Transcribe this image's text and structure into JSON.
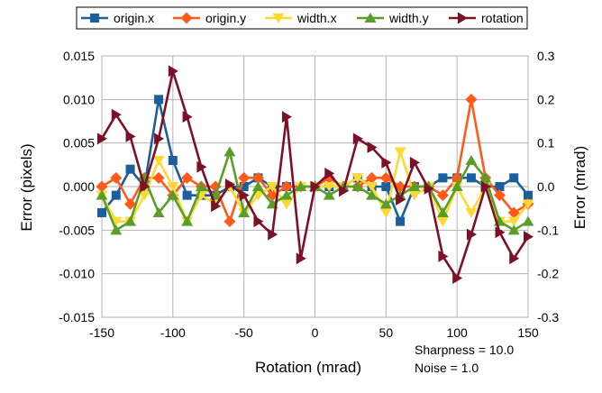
{
  "chart_data": {
    "type": "line",
    "xlabel": "Rotation (mrad)",
    "ylabel": "Error (pixels)",
    "y2label": "Error (mrad)",
    "xlim": [
      -150,
      150
    ],
    "ylim": [
      -0.015,
      0.015
    ],
    "y2lim": [
      -0.3,
      0.3
    ],
    "x_ticks": [
      -150,
      -100,
      -50,
      0,
      50,
      100,
      150
    ],
    "y_ticks": [
      "-0.015",
      "-0.010",
      "-0.005",
      "0.000",
      "0.005",
      "0.010",
      "0.015"
    ],
    "y2_ticks": [
      "-0.3",
      "-0.2",
      "-0.1",
      "0.0",
      "0.1",
      "0.2",
      "0.3"
    ],
    "grid": true,
    "legend_position": "top",
    "annotations": [
      "Sharpness = 10.0",
      "Noise = 1.0"
    ],
    "x": [
      -150,
      -140,
      -130,
      -120,
      -110,
      -100,
      -90,
      -80,
      -70,
      -60,
      -50,
      -40,
      -30,
      -20,
      -10,
      0,
      10,
      20,
      30,
      40,
      50,
      60,
      70,
      80,
      90,
      100,
      110,
      120,
      130,
      140,
      150
    ],
    "series": [
      {
        "name": "origin.x",
        "axis": "left",
        "color": "#1a5f9e",
        "marker": "square",
        "values": [
          -0.003,
          -0.001,
          0.002,
          0.0,
          0.01,
          0.003,
          -0.001,
          -0.001,
          -0.001,
          0.0,
          0.0,
          0.001,
          0.0,
          0.0,
          0.0,
          0.0,
          0.0,
          0.0,
          0.001,
          0.0,
          0.0,
          -0.004,
          0.0,
          0.0,
          0.001,
          0.001,
          0.001,
          0.0,
          0.0,
          0.001,
          -0.001
        ]
      },
      {
        "name": "origin.y",
        "axis": "left",
        "color": "#ff5a1a",
        "marker": "diamond",
        "values": [
          0.0,
          0.001,
          -0.002,
          0.001,
          0.001,
          -0.001,
          0.001,
          0.0,
          0.0,
          -0.004,
          0.001,
          0.001,
          -0.001,
          0.0,
          0.0,
          0.0,
          0.001,
          0.0,
          0.0,
          0.001,
          0.001,
          0.0,
          0.0,
          0.0,
          -0.001,
          0.001,
          0.01,
          0.001,
          -0.001,
          -0.003,
          -0.002
        ]
      },
      {
        "name": "width.x",
        "axis": "left",
        "color": "#ffd932",
        "marker": "triangle-down",
        "values": [
          -0.001,
          -0.004,
          -0.004,
          -0.001,
          0.003,
          0.0,
          -0.004,
          -0.001,
          -0.002,
          0.0,
          -0.003,
          -0.001,
          0.0,
          -0.002,
          0.0,
          0.0,
          0.0,
          0.0,
          0.001,
          0.0,
          -0.003,
          0.004,
          -0.001,
          0.0,
          -0.004,
          0.0,
          -0.003,
          0.0,
          -0.004,
          -0.004,
          -0.002
        ]
      },
      {
        "name": "width.y",
        "axis": "left",
        "color": "#5a9e2a",
        "marker": "triangle-up",
        "values": [
          -0.001,
          -0.005,
          -0.004,
          0.001,
          -0.003,
          -0.001,
          -0.004,
          0.0,
          -0.001,
          0.004,
          -0.003,
          0.0,
          -0.002,
          -0.001,
          0.0,
          0.0,
          -0.001,
          0.0,
          0.0,
          -0.001,
          -0.002,
          -0.001,
          0.0,
          0.0,
          -0.003,
          0.0,
          0.003,
          0.001,
          -0.004,
          -0.005,
          -0.004
        ]
      },
      {
        "name": "rotation",
        "axis": "right",
        "color": "#7d1029",
        "marker": "triangle-right",
        "values": [
          0.11,
          0.165,
          0.115,
          0.0,
          0.11,
          0.265,
          0.16,
          0.045,
          -0.045,
          0.005,
          -0.02,
          -0.08,
          -0.11,
          0.16,
          -0.165,
          0.0,
          0.03,
          -0.01,
          0.11,
          0.09,
          0.055,
          -0.03,
          0.055,
          -0.005,
          -0.16,
          -0.21,
          -0.11,
          0.0,
          -0.105,
          -0.165,
          -0.115
        ]
      }
    ]
  }
}
